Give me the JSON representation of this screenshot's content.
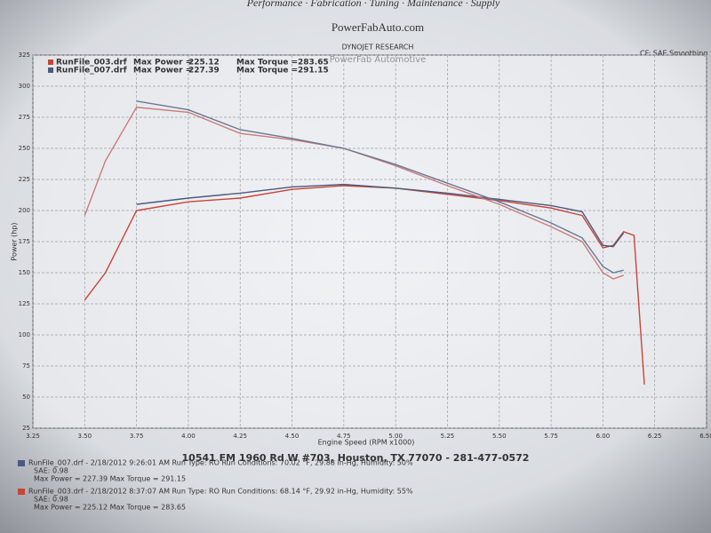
{
  "header": {
    "menu": "Performance · Fabrication · Tuning · Maintenance · Supply",
    "site": "PowerFabAuto.com",
    "company": "DYNOJET RESEARCH",
    "shop": "PowerFab Automotive",
    "settings": "CF: SAE  Smoothing"
  },
  "chart_data": {
    "type": "line",
    "x_label": "Engine Speed (RPM x1000)",
    "y_label": "Power (hp)",
    "x": [
      3.5,
      3.6,
      3.75,
      4.0,
      4.25,
      4.5,
      4.75,
      5.0,
      5.25,
      5.5,
      5.75,
      5.9,
      6.0,
      6.05,
      6.1,
      6.15,
      6.2
    ],
    "series": [
      {
        "color": "#c8453a",
        "values": [
          128,
          150,
          200,
          207,
          210,
          217,
          220,
          218,
          213,
          208,
          202,
          196,
          170,
          172,
          183,
          180,
          60
        ]
      },
      {
        "color": "#4a5a80",
        "values": [
          null,
          null,
          205,
          210,
          214,
          219,
          221,
          218,
          214,
          209,
          204,
          199,
          172,
          171,
          182,
          null,
          null
        ]
      },
      {
        "color": "#c87c78",
        "values": [
          196,
          240,
          283,
          279,
          262,
          257,
          250,
          236,
          220,
          205,
          187,
          175,
          150,
          145,
          148,
          null,
          null
        ]
      },
      {
        "color": "#6a7898",
        "values": [
          null,
          null,
          288,
          281,
          265,
          258,
          250,
          237,
          222,
          207,
          190,
          178,
          155,
          150,
          152,
          null,
          null
        ]
      }
    ],
    "xlim": [
      3.25,
      6.5
    ],
    "ylim": [
      25,
      325
    ],
    "xticks": [
      {
        "value": 3.25,
        "label": "3.25"
      },
      {
        "value": 3.5,
        "label": "3.50"
      },
      {
        "value": 3.75,
        "label": "3.75"
      },
      {
        "value": 4,
        "label": "4.00"
      },
      {
        "value": 4.25,
        "label": "4.25"
      },
      {
        "value": 4.5,
        "label": "4.50"
      },
      {
        "value": 4.75,
        "label": "4.75"
      },
      {
        "value": 5,
        "label": "5.00"
      },
      {
        "value": 5.25,
        "label": "5.25"
      },
      {
        "value": 5.5,
        "label": "5.50"
      },
      {
        "value": 5.75,
        "label": "5.75"
      },
      {
        "value": 6,
        "label": "6.00"
      },
      {
        "value": 6.25,
        "label": "6.25"
      },
      {
        "value": 6.5,
        "label": "6.50"
      }
    ],
    "yticks": [
      25,
      50,
      75,
      100,
      125,
      150,
      175,
      200,
      225,
      250,
      275,
      300,
      325
    ],
    "grid": true,
    "legend": [
      {
        "file": "RunFile_003.drf",
        "color": "#c8453a",
        "power_label": "Max Power =",
        "max_power": 225.12,
        "torque_label": "Max Torque =",
        "max_torque": 283.65
      },
      {
        "file": "RunFile_007.drf",
        "color": "#4a5a80",
        "power_label": "Max Power =",
        "max_power": 227.39,
        "torque_label": "Max Torque =",
        "max_torque": 291.15
      }
    ]
  },
  "footer": {
    "address": "10541 FM 1960 Rd W #703, Houston, TX 77070 - 281-477-0572",
    "runs": [
      {
        "color": "#4a5a80",
        "lines": [
          "RunFile_007.drf - 2/18/2012 9:26:01 AM  Run Type: RO  Run Conditions: 70.02 °F, 29.88 in-Hg,  Humidity: 50%",
          "SAE: 0.98",
          "Max Power = 227.39  Max Torque = 291.15"
        ]
      },
      {
        "color": "#c8453a",
        "lines": [
          "RunFile_003.drf - 2/18/2012 8:37:07 AM  Run Type: RO  Run Conditions: 68.14 °F, 29.92 in-Hg,  Humidity: 55%",
          "SAE: 0.98",
          "Max Power = 225.12  Max Torque = 283.65"
        ]
      }
    ]
  }
}
